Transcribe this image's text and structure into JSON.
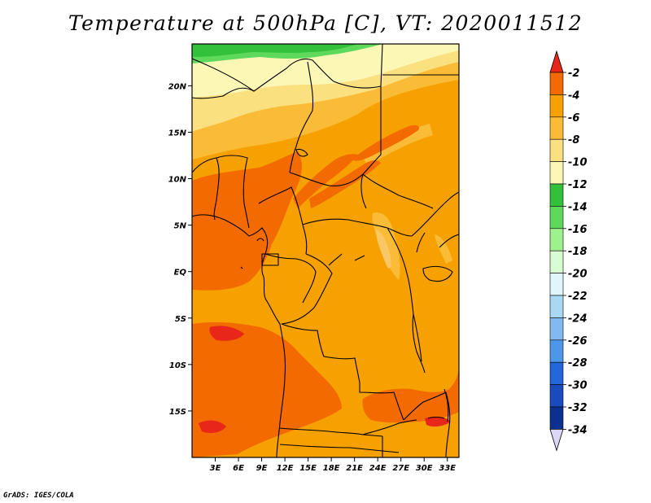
{
  "title": "Temperature at 500hPa [C], VT: 2020011512",
  "credit": "GrADS: IGES/COLA",
  "map": {
    "lat_labels": [
      "20N",
      "15N",
      "10N",
      "5N",
      "EQ",
      "5S",
      "10S",
      "15S"
    ],
    "lat_values": [
      20,
      15,
      10,
      5,
      0,
      -5,
      -10,
      -15
    ],
    "lon_labels": [
      "3E",
      "6E",
      "9E",
      "12E",
      "15E",
      "18E",
      "21E",
      "24E",
      "27E",
      "30E",
      "33E"
    ],
    "lon_values": [
      3,
      6,
      9,
      12,
      15,
      18,
      21,
      24,
      27,
      30,
      33
    ],
    "lat_range": [
      -20,
      24.5
    ],
    "lon_range": [
      0,
      34.5
    ]
  },
  "colorbar": {
    "labels": [
      "-2",
      "-4",
      "-6",
      "-8",
      "-10",
      "-12",
      "-14",
      "-16",
      "-18",
      "-20",
      "-22",
      "-24",
      "-26",
      "-28",
      "-30",
      "-32",
      "-34"
    ],
    "colors": [
      "#e8261a",
      "#f26a00",
      "#f7a100",
      "#fabb37",
      "#fbe07f",
      "#fdf7b6",
      "#33c03a",
      "#5fd95c",
      "#9ef28e",
      "#d8fcd4",
      "#e0f6fb",
      "#a9d8f3",
      "#80baf1",
      "#4d97ea",
      "#2467db",
      "#1a4bbd",
      "#0c3090",
      "#0a1468"
    ],
    "top_color": "#e8261a",
    "bottom_color": "#dcd7f3"
  },
  "field_colors": {
    "land_base": "#f7a100",
    "light_orange": "#fabb37",
    "pale_yellow": "#fbe07f",
    "cream": "#fdf7b6",
    "light_green": "#5fd95c",
    "green": "#33c03a",
    "dark_orange": "#f26a00",
    "red": "#e8261a",
    "pale_patch": "#f9c765"
  }
}
